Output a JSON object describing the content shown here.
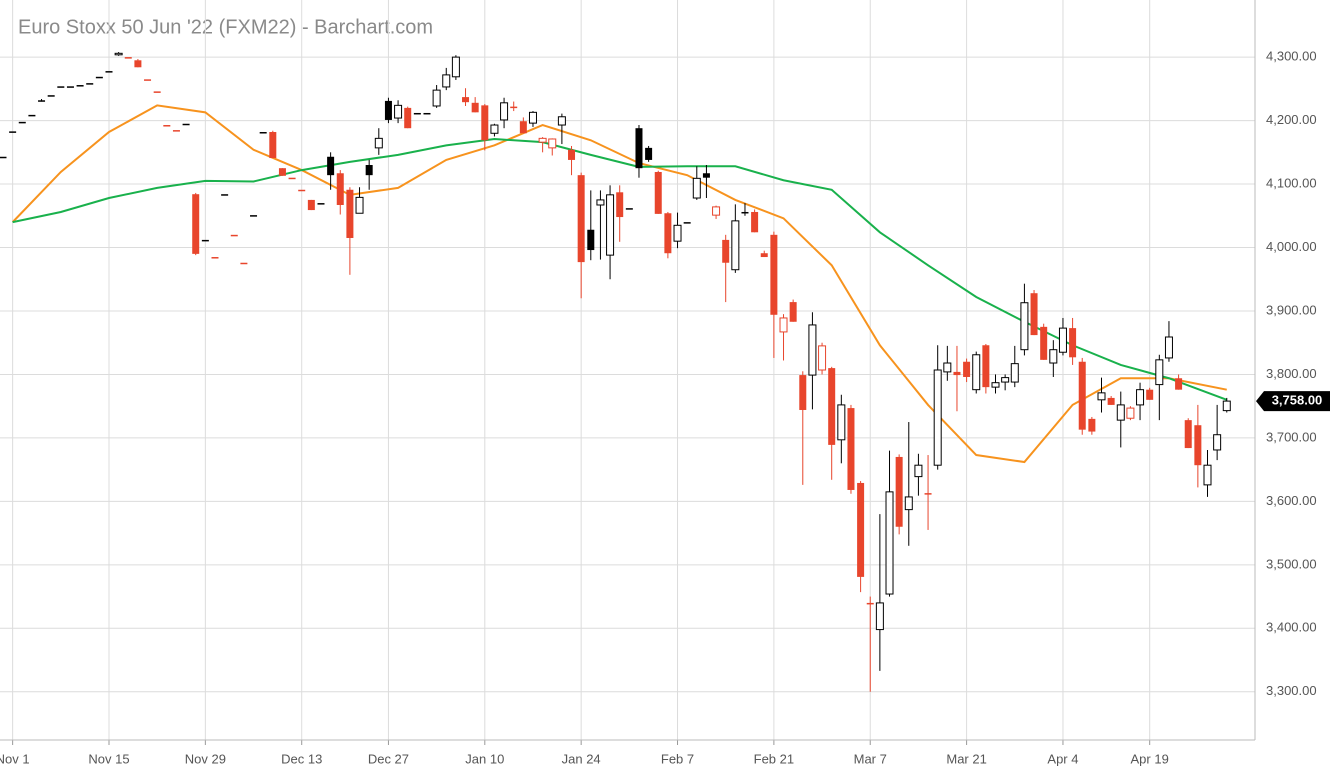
{
  "chart_data": {
    "type": "candlestick",
    "title": "Euro Stoxx 50 Jun '22 (FXM22) - Barchart.com",
    "categories": [
      null,
      "Nov 1",
      null,
      null,
      null,
      null,
      null,
      null,
      null,
      null,
      null,
      "Nov 15",
      null,
      null,
      null,
      null,
      null,
      null,
      null,
      null,
      null,
      "Nov 29",
      null,
      null,
      null,
      null,
      null,
      null,
      null,
      null,
      null,
      "Dec 13",
      null,
      null,
      null,
      null,
      null,
      null,
      null,
      null,
      "Dec 27",
      null,
      null,
      null,
      null,
      null,
      null,
      null,
      null,
      null,
      "Jan 10",
      null,
      null,
      null,
      null,
      null,
      null,
      null,
      null,
      null,
      "Jan 24",
      null,
      null,
      null,
      null,
      null,
      null,
      null,
      null,
      null,
      "Feb 7",
      null,
      null,
      null,
      null,
      null,
      null,
      null,
      null,
      null,
      "Feb 21",
      null,
      null,
      null,
      null,
      null,
      null,
      null,
      null,
      null,
      "Mar 7",
      null,
      null,
      null,
      null,
      null,
      null,
      null,
      null,
      null,
      "Mar 21",
      null,
      null,
      null,
      null,
      null,
      null,
      null,
      null,
      null,
      "Apr 4",
      null,
      null,
      null,
      null,
      null,
      null,
      null,
      null,
      "Apr 19",
      null,
      null,
      null,
      null,
      null,
      null,
      null,
      null
    ],
    "ohlc": [
      [
        4143,
        4143,
        4143,
        4143
      ],
      [
        4183,
        4183,
        4183,
        4183
      ],
      [
        4198,
        4198,
        4198,
        4198
      ],
      [
        4209,
        4209,
        4209,
        4209
      ],
      [
        4232,
        4234,
        4230,
        4232
      ],
      [
        4240,
        4240,
        4240,
        4240
      ],
      [
        4254,
        4254,
        4254,
        4254
      ],
      [
        4254,
        4254,
        4254,
        4254
      ],
      [
        4256,
        4256,
        4256,
        4256
      ],
      [
        4259,
        4259,
        4259,
        4259
      ],
      [
        4269,
        4269,
        4269,
        4269
      ],
      [
        4278,
        4278,
        4278,
        4278
      ],
      [
        4304,
        4308,
        4302,
        4306
      ],
      [
        4300,
        4300,
        4300,
        4300
      ],
      [
        4295,
        4297,
        4284,
        4284
      ],
      [
        4265,
        4265,
        4265,
        4265
      ],
      [
        4246,
        4246,
        4246,
        4246
      ],
      [
        4193,
        4193,
        4193,
        4193
      ],
      [
        4185,
        4185,
        4185,
        4185
      ],
      [
        4195,
        4195,
        4195,
        4195
      ],
      [
        4084,
        4086,
        3988,
        3990
      ],
      [
        4012,
        4012,
        4012,
        4012
      ],
      [
        3985,
        3985,
        3985,
        3985
      ],
      [
        4084,
        4084,
        4084,
        4084
      ],
      [
        4020,
        4020,
        4020,
        4020
      ],
      [
        3976,
        3976,
        3976,
        3976
      ],
      [
        4051,
        4051,
        4051,
        4051
      ],
      [
        4182,
        4182,
        4182,
        4182
      ],
      [
        4182,
        4184,
        4141,
        4141
      ],
      [
        4125,
        4125,
        4113,
        4113
      ],
      [
        4110,
        4110,
        4110,
        4110
      ],
      [
        4091,
        4091,
        4091,
        4091
      ],
      [
        4075,
        4075,
        4059,
        4059
      ],
      [
        4070,
        4070,
        4070,
        4070
      ],
      [
        4143,
        4150,
        4091,
        4114
      ],
      [
        4117,
        4122,
        4052,
        4067
      ],
      [
        4091,
        4095,
        3957,
        4015
      ],
      [
        4054,
        4095,
        4054,
        4079
      ],
      [
        4130,
        4138,
        4091,
        4114
      ],
      [
        4157,
        4188,
        4146,
        4172
      ],
      [
        4231,
        4236,
        4196,
        4201
      ],
      [
        4204,
        4232,
        4196,
        4224
      ],
      [
        4220,
        4222,
        4188,
        4188
      ],
      [
        4212,
        4212,
        4212,
        4212
      ],
      [
        4212,
        4212,
        4212,
        4212
      ],
      [
        4223,
        4256,
        4220,
        4248
      ],
      [
        4253,
        4283,
        4248,
        4272
      ],
      [
        4269,
        4303,
        4264,
        4300
      ],
      [
        4237,
        4251,
        4223,
        4229
      ],
      [
        4228,
        4237,
        4213,
        4213
      ],
      [
        4224,
        4226,
        4153,
        4169
      ],
      [
        4180,
        4195,
        4175,
        4193
      ],
      [
        4201,
        4236,
        4188,
        4228
      ],
      [
        4222,
        4230,
        4215,
        4222
      ],
      [
        4199,
        4205,
        4180,
        4180
      ],
      [
        4196,
        4215,
        4190,
        4213
      ],
      [
        4166,
        4174,
        4150,
        4172
      ],
      [
        4157,
        4172,
        4145,
        4171
      ],
      [
        4193,
        4211,
        4163,
        4206
      ],
      [
        4154,
        4160,
        4114,
        4138
      ],
      [
        4114,
        4118,
        3920,
        3977
      ],
      [
        4028,
        4090,
        3980,
        3996
      ],
      [
        4067,
        4090,
        3981,
        4075
      ],
      [
        3988,
        4098,
        3950,
        4083
      ],
      [
        4087,
        4098,
        4009,
        4048
      ],
      [
        4062,
        4062,
        4062,
        4062
      ],
      [
        4188,
        4193,
        4110,
        4125
      ],
      [
        4157,
        4160,
        4135,
        4138
      ],
      [
        4119,
        4121,
        4053,
        4053
      ],
      [
        4054,
        4056,
        3983,
        3991
      ],
      [
        4010,
        4055,
        3999,
        4035
      ],
      [
        4040,
        4040,
        4040,
        4040
      ],
      [
        4078,
        4128,
        4075,
        4109
      ],
      [
        4117,
        4130,
        4078,
        4110
      ],
      [
        4051,
        4066,
        4045,
        4064
      ],
      [
        4012,
        4020,
        3914,
        3976
      ],
      [
        3965,
        4068,
        3960,
        4042
      ],
      [
        4056,
        4070,
        4050,
        4056
      ],
      [
        4056,
        4060,
        4024,
        4024
      ],
      [
        3991,
        3995,
        3985,
        3985
      ],
      [
        4020,
        4025,
        3826,
        3894
      ],
      [
        3867,
        3895,
        3822,
        3889
      ],
      [
        3914,
        3918,
        3883,
        3883
      ],
      [
        3799,
        3805,
        3626,
        3744
      ],
      [
        3799,
        3898,
        3745,
        3878
      ],
      [
        3807,
        3850,
        3800,
        3845
      ],
      [
        3810,
        3812,
        3634,
        3689
      ],
      [
        3697,
        3768,
        3660,
        3752
      ],
      [
        3747,
        3752,
        3612,
        3618
      ],
      [
        3629,
        3632,
        3457,
        3481
      ],
      [
        3440,
        3450,
        3300,
        3440
      ],
      [
        3398,
        3580,
        3333,
        3440
      ],
      [
        3454,
        3680,
        3450,
        3615
      ],
      [
        3670,
        3674,
        3548,
        3560
      ],
      [
        3587,
        3725,
        3530,
        3607
      ],
      [
        3639,
        3675,
        3609,
        3657
      ],
      [
        3613,
        3673,
        3555,
        3613
      ],
      [
        3657,
        3846,
        3650,
        3807
      ],
      [
        3804,
        3845,
        3790,
        3818
      ],
      [
        3804,
        3845,
        3742,
        3799
      ],
      [
        3820,
        3825,
        3788,
        3796
      ],
      [
        3776,
        3836,
        3770,
        3831
      ],
      [
        3846,
        3848,
        3770,
        3780
      ],
      [
        3780,
        3800,
        3770,
        3787
      ],
      [
        3788,
        3800,
        3775,
        3795
      ],
      [
        3788,
        3845,
        3780,
        3817
      ],
      [
        3839,
        3943,
        3830,
        3913
      ],
      [
        3928,
        3933,
        3862,
        3862
      ],
      [
        3875,
        3880,
        3823,
        3823
      ],
      [
        3818,
        3854,
        3796,
        3839
      ],
      [
        3835,
        3889,
        3830,
        3873
      ],
      [
        3873,
        3889,
        3815,
        3827
      ],
      [
        3820,
        3826,
        3705,
        3713
      ],
      [
        3730,
        3733,
        3705,
        3710
      ],
      [
        3760,
        3795,
        3740,
        3771
      ],
      [
        3763,
        3766,
        3752,
        3752
      ],
      [
        3728,
        3773,
        3685,
        3752
      ],
      [
        3731,
        3750,
        3728,
        3747
      ],
      [
        3752,
        3787,
        3728,
        3776
      ],
      [
        3776,
        3779,
        3760,
        3760
      ],
      [
        3784,
        3831,
        3728,
        3823
      ],
      [
        3826,
        3884,
        3820,
        3859
      ],
      [
        3794,
        3800,
        3776,
        3776
      ],
      [
        3728,
        3731,
        3684,
        3684
      ],
      [
        3720,
        3752,
        3622,
        3657
      ],
      [
        3626,
        3681,
        3607,
        3657
      ],
      [
        3681,
        3752,
        3665,
        3705
      ],
      [
        3743,
        3763,
        3740,
        3758
      ]
    ],
    "up_color": "#000000",
    "down_color": "#e8452c",
    "lines": [
      {
        "color": "#f7931e",
        "x": [
          1,
          6,
          11,
          16,
          21,
          26,
          31,
          36,
          41,
          46,
          51,
          56,
          61,
          66,
          71,
          76,
          81,
          86,
          91,
          96,
          101,
          106,
          111,
          116,
          121,
          127
        ],
        "values": [
          4040,
          4119,
          4182,
          4224,
          4213,
          4154,
          4122,
          4083,
          4094,
          4138,
          4161,
          4193,
          4169,
          4133,
          4114,
          4075,
          4046,
          3972,
          3846,
          3752,
          3673,
          3662,
          3752,
          3794,
          3794,
          3776
        ]
      },
      {
        "color": "#19b14c",
        "x": [
          1,
          6,
          11,
          16,
          21,
          26,
          31,
          36,
          41,
          46,
          51,
          56,
          61,
          66,
          71,
          76,
          81,
          86,
          91,
          96,
          101,
          106,
          111,
          116,
          121,
          127
        ],
        "values": [
          4040,
          4056,
          4078,
          4094,
          4105,
          4104,
          4122,
          4135,
          4146,
          4161,
          4171,
          4166,
          4146,
          4127,
          4128,
          4128,
          4106,
          4091,
          4024,
          3972,
          3922,
          3883,
          3846,
          3815,
          3794,
          3760
        ]
      }
    ],
    "last": {
      "value": 3758,
      "label": "3,758.00"
    },
    "ylim": [
      3224,
      4390
    ],
    "yticks": [
      {
        "value": 3300,
        "label": "3,300.00"
      },
      {
        "value": 3400,
        "label": "3,400.00"
      },
      {
        "value": 3500,
        "label": "3,500.00"
      },
      {
        "value": 3600,
        "label": "3,600.00"
      },
      {
        "value": 3700,
        "label": "3,700.00"
      },
      {
        "value": 3800,
        "label": "3,800.00"
      },
      {
        "value": 3900,
        "label": "3,900.00"
      },
      {
        "value": 4000,
        "label": "4,000.00"
      },
      {
        "value": 4100,
        "label": "4,100.00"
      },
      {
        "value": 4200,
        "label": "4,200.00"
      },
      {
        "value": 4300,
        "label": "4,300.00"
      }
    ],
    "grid": true
  }
}
